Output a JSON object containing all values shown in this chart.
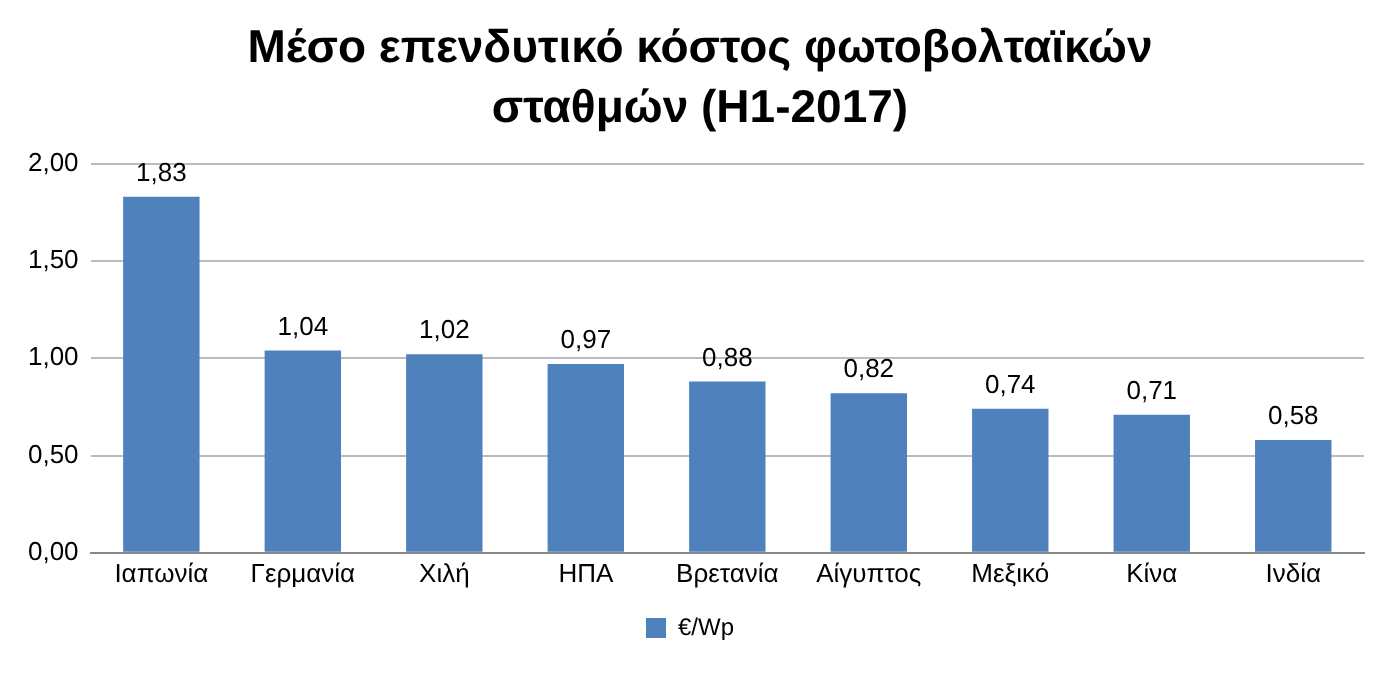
{
  "chart_data": {
    "type": "bar",
    "title": "Μέσο επενδυτικό κόστος φωτοβολταϊκών σταθμών (H1-2017)",
    "categories": [
      "Ιαπωνία",
      "Γερμανία",
      "Χιλή",
      "ΗΠΑ",
      "Βρετανία",
      "Αίγυπτος",
      "Μεξικό",
      "Κίνα",
      "Ινδία"
    ],
    "series": [
      {
        "name": "€/Wp",
        "color": "#4f81bd",
        "values": [
          1.83,
          1.04,
          1.02,
          0.97,
          0.88,
          0.82,
          0.74,
          0.71,
          0.58
        ],
        "value_labels": [
          "1,83",
          "1,04",
          "1,02",
          "0,97",
          "0,88",
          "0,82",
          "0,74",
          "0,71",
          "0,58"
        ]
      }
    ],
    "ylim": [
      0,
      2
    ],
    "yticks": [
      {
        "value": 0,
        "label": "0,00"
      },
      {
        "value": 0.5,
        "label": "0,50"
      },
      {
        "value": 1,
        "label": "1,00"
      },
      {
        "value": 1.5,
        "label": "1,50"
      },
      {
        "value": 2,
        "label": "2,00"
      }
    ],
    "grid": "y",
    "legend": "bottom"
  }
}
